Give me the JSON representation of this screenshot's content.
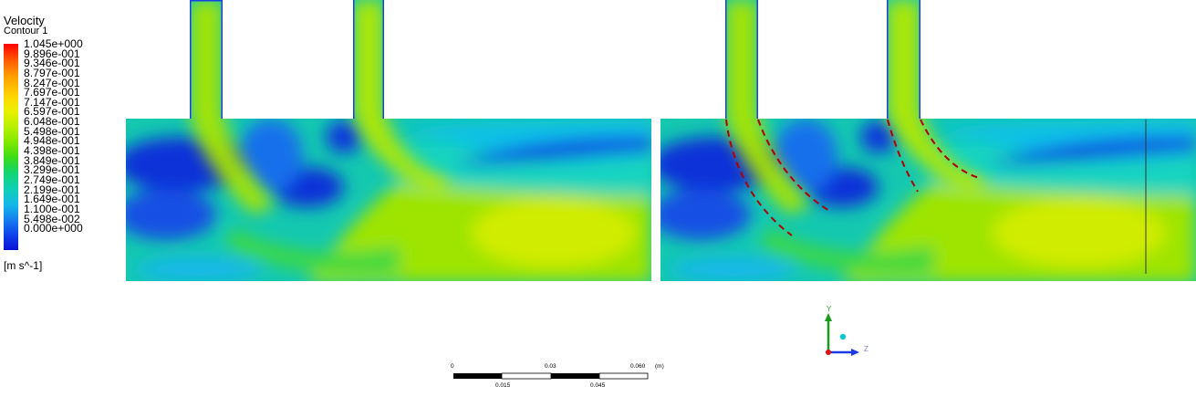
{
  "legend": {
    "title": "Velocity",
    "subtitle": "Contour 1",
    "ticks": [
      "1.045e+000",
      "9.896e-001",
      "9.346e-001",
      "8.797e-001",
      "8.247e-001",
      "7.697e-001",
      "7.147e-001",
      "6.597e-001",
      "6.048e-001",
      "5.498e-001",
      "4.948e-001",
      "4.398e-001",
      "3.849e-001",
      "3.299e-001",
      "2.749e-001",
      "2.199e-001",
      "1.649e-001",
      "1.100e-001",
      "5.498e-002",
      "0.000e+000"
    ],
    "unit": "[m s^-1]"
  },
  "scale": {
    "labels_top": [
      "0",
      "0.03",
      "0.060"
    ],
    "unit": "(m)",
    "labels_bottom": [
      "0.015",
      "0.045"
    ]
  },
  "axes": {
    "y": "Y",
    "z": "Z"
  },
  "colors": {
    "low": "#0a10d8",
    "mid": "#3ddc18",
    "high": "#ff0000",
    "streamline": "#b00000"
  }
}
